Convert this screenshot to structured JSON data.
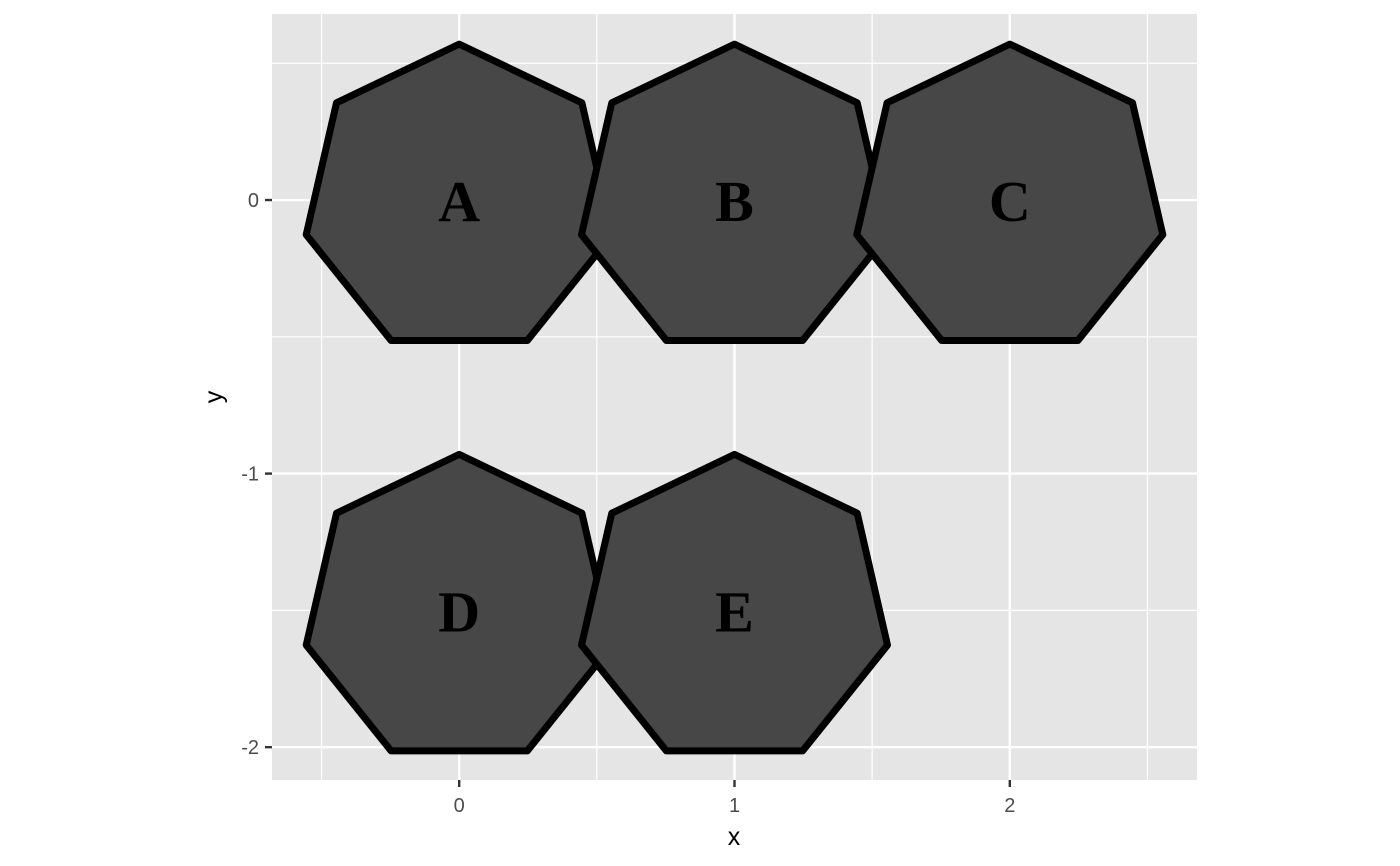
{
  "chart_data": {
    "type": "scatter",
    "xlabel": "x",
    "ylabel": "y",
    "xlim": [
      -0.68,
      2.68
    ],
    "ylim": [
      -2.12,
      0.68
    ],
    "x_ticks": [
      {
        "value": 0,
        "label": "0"
      },
      {
        "value": 1,
        "label": "1"
      },
      {
        "value": 2,
        "label": "2"
      }
    ],
    "y_ticks": [
      {
        "value": 0,
        "label": "0"
      },
      {
        "value": -1,
        "label": "-1"
      },
      {
        "value": -2,
        "label": "-2"
      }
    ],
    "grid": true,
    "shape": "heptagon",
    "shape_circumradius": 0.57,
    "points": [
      {
        "label": "A",
        "x": 0,
        "y": 0
      },
      {
        "label": "B",
        "x": 1,
        "y": 0
      },
      {
        "label": "C",
        "x": 2,
        "y": 0
      },
      {
        "label": "D",
        "x": 0,
        "y": -1.5
      },
      {
        "label": "E",
        "x": 1,
        "y": -1.5
      }
    ],
    "colors": {
      "panel_background": "#e5e5e5",
      "grid": "#ffffff",
      "shape_fill": "#474747",
      "shape_stroke": "#000000"
    }
  }
}
